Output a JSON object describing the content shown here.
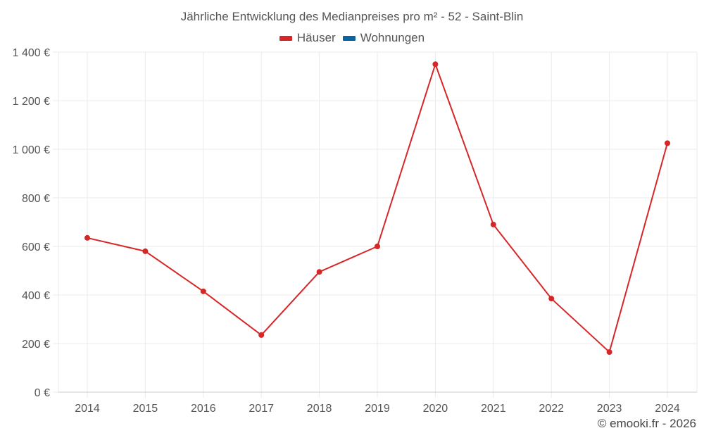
{
  "title": "Jährliche Entwicklung des Medianpreises pro m² - 52 - Saint-Blin",
  "legend": [
    {
      "label": "Häuser",
      "color": "#d62728"
    },
    {
      "label": "Wohnungen",
      "color": "#0b64a0"
    }
  ],
  "credit": "© emooki.fr - 2026",
  "colors": {
    "series_line": "#d62728",
    "grid": "#ebebeb",
    "axis": "#cccccc",
    "text": "#555555"
  },
  "chart_data": {
    "type": "line",
    "title": "Jährliche Entwicklung des Medianpreises pro m² - 52 - Saint-Blin",
    "xlabel": "",
    "ylabel": "",
    "categories": [
      "2014",
      "2015",
      "2016",
      "2017",
      "2018",
      "2019",
      "2020",
      "2021",
      "2022",
      "2023",
      "2024"
    ],
    "series": [
      {
        "name": "Häuser",
        "color": "#d62728",
        "values": [
          635,
          580,
          415,
          235,
          495,
          600,
          1350,
          690,
          385,
          165,
          1025
        ]
      },
      {
        "name": "Wohnungen",
        "color": "#0b64a0",
        "values": []
      }
    ],
    "ylim": [
      0,
      1400
    ],
    "yticks": [
      0,
      200,
      400,
      600,
      800,
      1000,
      1200,
      1400
    ],
    "ytick_labels": [
      "0 €",
      "200 €",
      "400 €",
      "600 €",
      "800 €",
      "1 000 €",
      "1 200 €",
      "1 400 €"
    ],
    "grid": true,
    "legend_position": "top"
  }
}
